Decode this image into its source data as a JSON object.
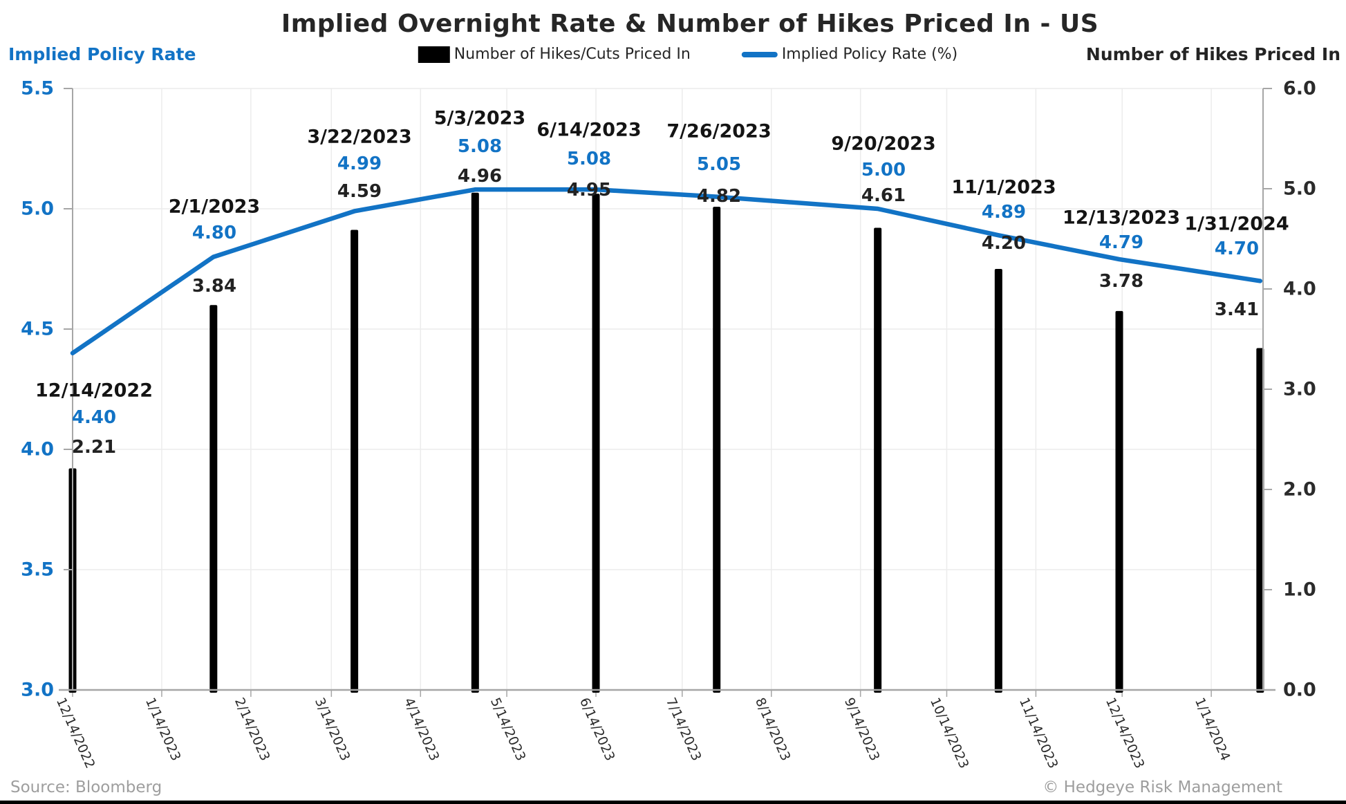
{
  "title": "Implied Overnight Rate & Number of Hikes Priced In - US",
  "legend": {
    "bar_label": "Number of Hikes/Cuts Priced In",
    "line_label": "Implied Policy Rate (%)"
  },
  "left_axis": {
    "title": "Implied Policy Rate",
    "ticks": [
      5.5,
      5.0,
      4.5,
      4.0,
      3.5,
      3.0
    ],
    "range": [
      3.0,
      5.5
    ]
  },
  "right_axis": {
    "title": "Number of Hikes Priced In",
    "ticks": [
      6.0,
      5.0,
      4.0,
      3.0,
      2.0,
      1.0,
      0.0
    ],
    "range": [
      0.0,
      6.0
    ]
  },
  "x_axis": {
    "tick_labels": [
      "12/14/2022",
      "1/14/2023",
      "2/14/2023",
      "3/14/2023",
      "4/14/2023",
      "5/14/2023",
      "6/14/2023",
      "7/14/2023",
      "8/14/2023",
      "9/14/2023",
      "10/14/2023",
      "11/14/2023",
      "12/14/2023",
      "1/14/2024"
    ]
  },
  "footer": {
    "source": "Source: Bloomberg",
    "copyright": "© Hedgeye Risk Management"
  },
  "colors": {
    "line_blue": "#1273C5",
    "bar_black": "#000000",
    "gridline": "#ececec",
    "axis_line": "#a6a6a6",
    "footer_gray": "#9e9e9e",
    "text_dark": "#262626"
  },
  "chart_data": {
    "type": "combo",
    "title": "Implied Overnight Rate & Number of Hikes Priced In - US",
    "series": [
      {
        "name": "Number of Hikes/Cuts Priced In",
        "type": "bar",
        "axis": "right"
      },
      {
        "name": "Implied Policy Rate (%)",
        "type": "line",
        "axis": "left"
      }
    ],
    "left_ylim": [
      3.0,
      5.5
    ],
    "right_ylim": [
      0.0,
      6.0
    ],
    "grid": true,
    "points": [
      {
        "date": "12/14/2022",
        "rate": 4.4,
        "hikes": 2.21
      },
      {
        "date": "2/1/2023",
        "rate": 4.8,
        "hikes": 3.84
      },
      {
        "date": "3/22/2023",
        "rate": 4.99,
        "hikes": 4.59
      },
      {
        "date": "5/3/2023",
        "rate": 5.08,
        "hikes": 4.96
      },
      {
        "date": "6/14/2023",
        "rate": 5.08,
        "hikes": 4.95
      },
      {
        "date": "7/26/2023",
        "rate": 5.05,
        "hikes": 4.82
      },
      {
        "date": "9/20/2023",
        "rate": 5.0,
        "hikes": 4.61
      },
      {
        "date": "11/1/2023",
        "rate": 4.89,
        "hikes": 4.2
      },
      {
        "date": "12/13/2023",
        "rate": 4.79,
        "hikes": 3.78
      },
      {
        "date": "1/31/2024",
        "rate": 4.7,
        "hikes": 3.41
      }
    ]
  }
}
